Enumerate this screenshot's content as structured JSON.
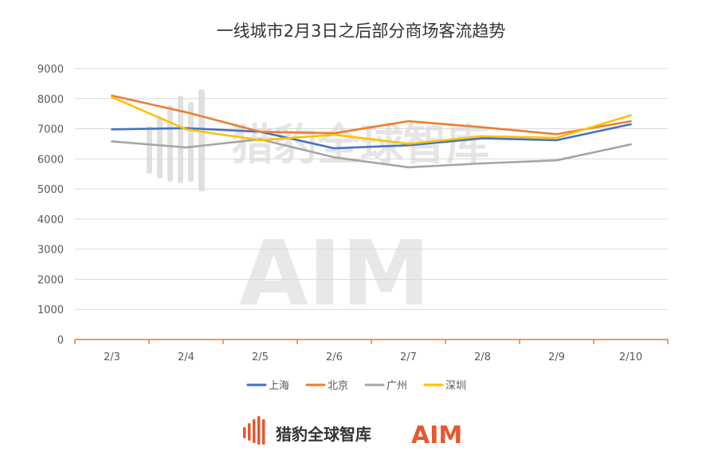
{
  "chart_data": {
    "type": "line",
    "title": "一线城市2月3日之后部分商场客流趋势",
    "xlabel": "",
    "ylabel": "",
    "categories": [
      "2/3",
      "2/4",
      "2/5",
      "2/6",
      "2/7",
      "2/8",
      "2/9",
      "2/10"
    ],
    "ylim": [
      0,
      9000
    ],
    "yticks": [
      0,
      1000,
      2000,
      3000,
      4000,
      5000,
      6000,
      7000,
      8000,
      9000
    ],
    "grid": true,
    "legend_position": "bottom",
    "series": [
      {
        "name": "上海",
        "color": "#4472c4",
        "values": [
          6980,
          7020,
          6900,
          6350,
          6450,
          6680,
          6620,
          7150
        ]
      },
      {
        "name": "北京",
        "color": "#ed7d31",
        "values": [
          8100,
          7550,
          6900,
          6850,
          7250,
          7050,
          6820,
          7250
        ]
      },
      {
        "name": "广州",
        "color": "#a5a5a5",
        "values": [
          6580,
          6380,
          6650,
          6050,
          5720,
          5850,
          5950,
          6480
        ]
      },
      {
        "name": "深圳",
        "color": "#ffc000",
        "values": [
          8050,
          6980,
          6620,
          6800,
          6500,
          6750,
          6700,
          7450
        ]
      }
    ]
  },
  "watermark": {
    "brand_name": "猎豹全球智库",
    "brand_logo_text": "AIM",
    "icon": "bar-mark-icon"
  },
  "footer": {
    "brand_name": "猎豹全球智库",
    "brand_logo_text": "AIM",
    "icon": "bar-mark-icon",
    "accent_color": "#e8572e"
  }
}
